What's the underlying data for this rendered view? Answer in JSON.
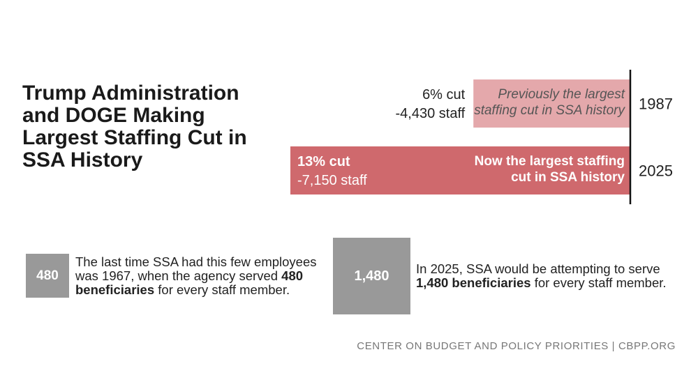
{
  "title_lines": [
    "Trump Administration",
    "and DOGE Making",
    "Largest Staffing Cut in",
    "SSA History"
  ],
  "chart_data": {
    "type": "bar",
    "orientation": "horizontal",
    "categories": [
      "1987",
      "2025"
    ],
    "values": [
      6,
      13
    ],
    "unit": "% cut",
    "staff_changes": [
      "-4,430 staff",
      "-7,150 staff"
    ],
    "cut_labels": [
      "6% cut",
      "13% cut"
    ],
    "annotations": [
      [
        "Previously the largest",
        "staffing cut in SSA history"
      ],
      [
        "Now the largest staffing",
        "cut in SSA history"
      ]
    ],
    "xlim": [
      0,
      13
    ],
    "grid": false,
    "colors": [
      "#e4a8ab",
      "#cf696d"
    ]
  },
  "stat_480": {
    "value": "480",
    "text_prefix": "The last time SSA had this few employees was 1967, when the agency served ",
    "text_bold": "480 beneficiaries",
    "text_suffix": " for every staff member."
  },
  "stat_1480": {
    "value": "1,480",
    "text_prefix": "In 2025, SSA would be attempting to serve ",
    "text_bold": "1,480 beneficiaries",
    "text_suffix": " for every staff member."
  },
  "source": "CENTER ON BUDGET AND POLICY PRIORITIES | CBPP.ORG",
  "colors": {
    "box": "#999999",
    "axis": "#111111"
  }
}
